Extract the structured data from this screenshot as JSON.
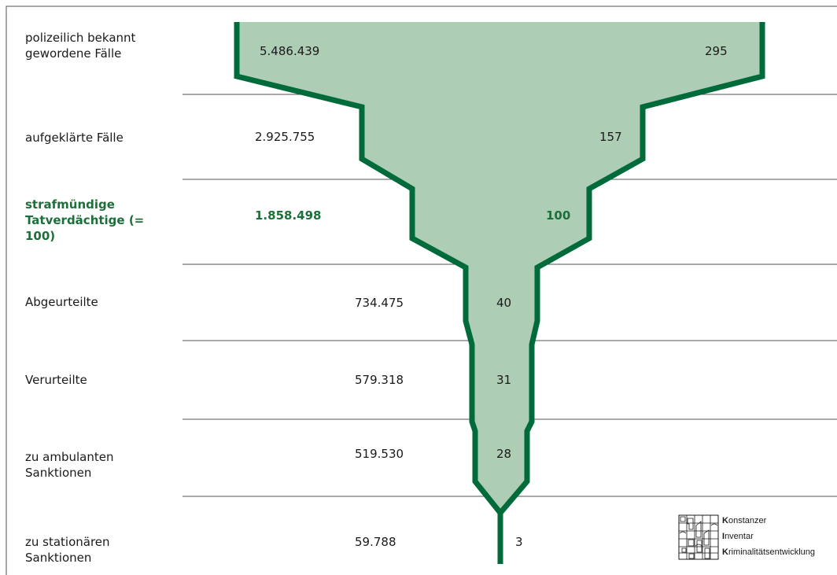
{
  "chart_data": {
    "type": "funnel",
    "stages": [
      {
        "label": "polizeilich bekannt gewordene Fälle",
        "absolute": "5.486.439",
        "index": "295",
        "index_value": 295,
        "highlight": false
      },
      {
        "label": "aufgeklärte Fälle",
        "absolute": "2.925.755",
        "index": "157",
        "index_value": 157,
        "highlight": false
      },
      {
        "label": "strafmündige Tatverdächtige (= 100)",
        "absolute": "1.858.498",
        "index": "100",
        "index_value": 100,
        "highlight": true
      },
      {
        "label": "Abgeurteilte",
        "absolute": "734.475",
        "index": "40",
        "index_value": 40,
        "highlight": false
      },
      {
        "label": "Verurteilte",
        "absolute": "579.318",
        "index": "31",
        "index_value": 31,
        "highlight": false
      },
      {
        "label": "zu ambulanten Sanktionen",
        "absolute": "519.530",
        "index": "28",
        "index_value": 28,
        "highlight": false
      },
      {
        "label": "zu stationären Sanktionen",
        "absolute": "59.788",
        "index": "3",
        "index_value": 3,
        "highlight": false
      }
    ],
    "colors": {
      "fill": "#aecdb5",
      "outline": "#006b3a",
      "highlight_text": "#1d6e3a"
    }
  },
  "logo": {
    "line1_initial": "K",
    "line1_rest": "onstanzer",
    "line2_initial": "I",
    "line2_rest": "nventar",
    "line3_initial": "K",
    "line3_rest": "riminalitätsentwicklung"
  }
}
